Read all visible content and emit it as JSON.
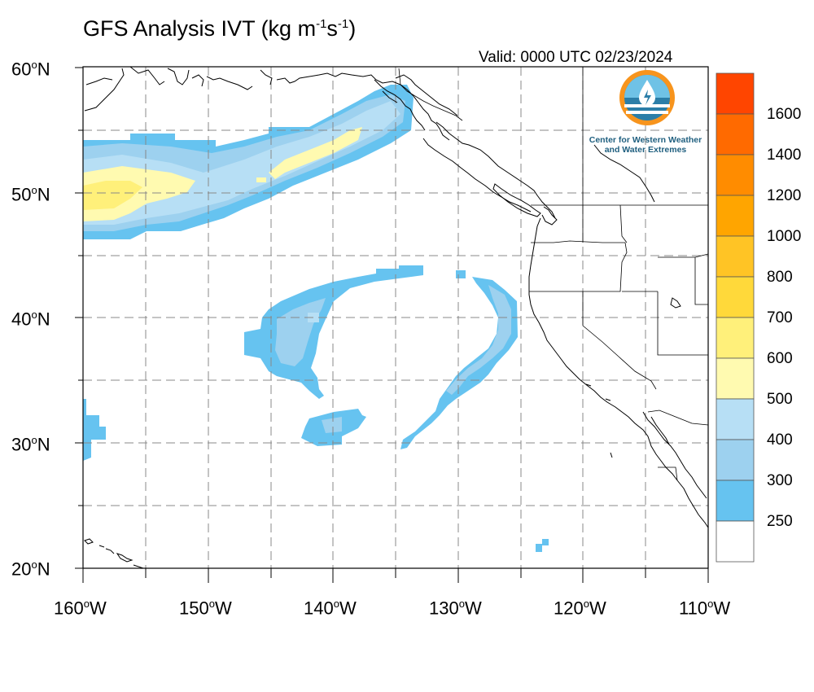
{
  "title": {
    "main": "GFS Analysis IVT (kg m",
    "exp1": "-1",
    "mid": "s",
    "exp2": "-1",
    "close": ")"
  },
  "valid": "Valid: 0000 UTC 02/23/2024",
  "logo": {
    "line1": "Center for Western Weather",
    "line2": "and Water Extremes"
  },
  "axes": {
    "lat_labels": [
      "60",
      "50",
      "40",
      "30",
      "20"
    ],
    "lat_suffix": "N",
    "lon_labels": [
      "160",
      "150",
      "140",
      "130",
      "120",
      "110"
    ],
    "lon_suffix": "W",
    "lon_range": [
      -160,
      -110
    ],
    "lat_range": [
      20,
      60
    ]
  },
  "colorbar": {
    "labels": [
      "1600",
      "1400",
      "1200",
      "1000",
      "800",
      "700",
      "600",
      "500",
      "400",
      "300",
      "250"
    ],
    "colors": [
      "#ff4500",
      "#ff6a00",
      "#ff8c00",
      "#ffa500",
      "#ffc425",
      "#ffd93a",
      "#fff07a",
      "#fffab0",
      "#b7dff5",
      "#9dd1ef",
      "#66c3f0",
      "#ffffff"
    ]
  },
  "colors": {
    "ivt_250": "#66c3f0",
    "ivt_300": "#9dd1ef",
    "ivt_400": "#b7dff5",
    "ivt_500": "#fffab0",
    "ivt_600": "#fff07a"
  }
}
